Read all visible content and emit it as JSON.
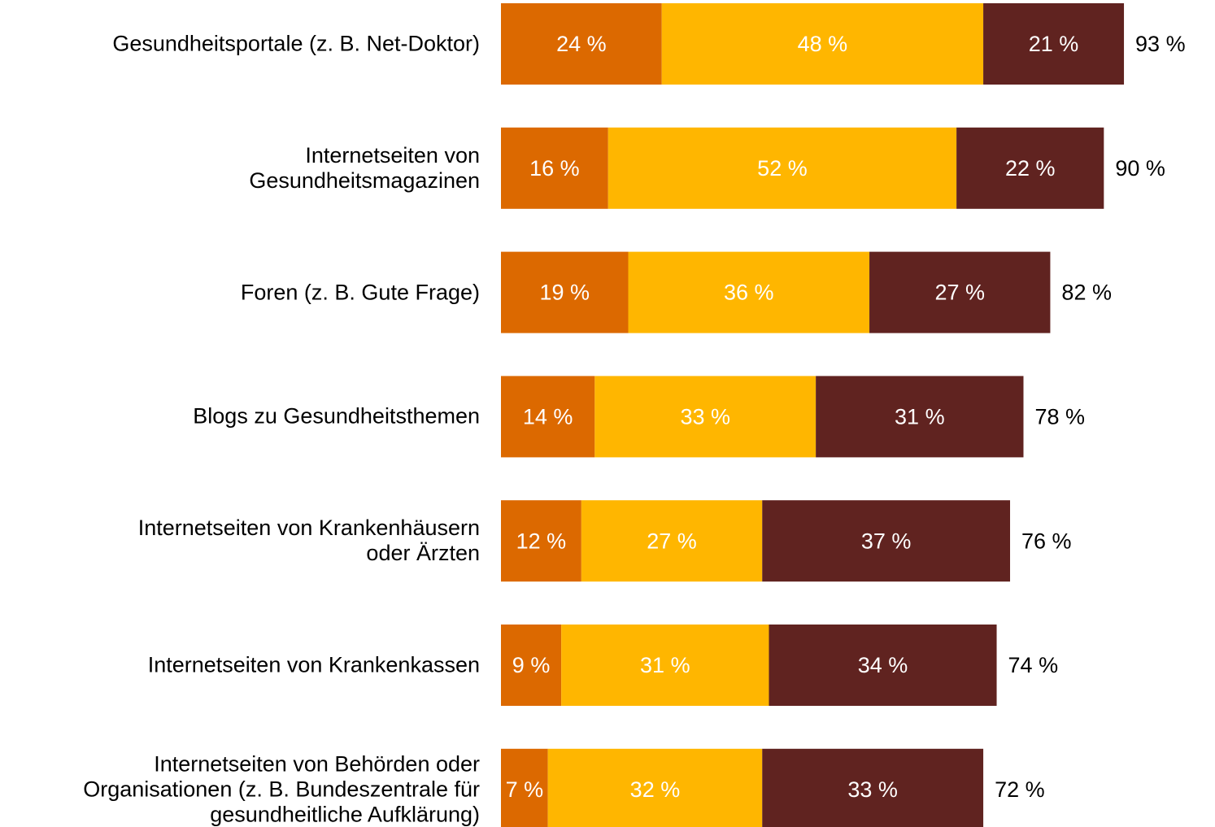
{
  "chart_data": {
    "type": "stacked-bar-horizontal",
    "categories": [
      "Gesundheitsportale (z. B. Net-Doktor)",
      "Internetseiten von\nGesundheitsmagazinen",
      "Foren (z. B. Gute Frage)",
      "Blogs zu Gesundheitsthemen",
      "Internetseiten von Krankenhäusern\noder Ärzten",
      "Internetseiten von Krankenkassen",
      "Internetseiten von Behörden oder\nOrganisationen (z. B. Bundeszentrale für\ngesundheitliche Aufklärung)"
    ],
    "series": [
      {
        "color": "#dc6900",
        "values": [
          24,
          16,
          19,
          14,
          12,
          9,
          7
        ],
        "value_labels": [
          "24 %",
          "16 %",
          "19 %",
          "14 %",
          "12 %",
          "9 %",
          "7 %"
        ]
      },
      {
        "color": "#ffb600",
        "values": [
          48,
          52,
          36,
          33,
          27,
          31,
          32
        ],
        "value_labels": [
          "48 %",
          "52 %",
          "36 %",
          "33 %",
          "27 %",
          "31 %",
          "32 %"
        ]
      },
      {
        "color": "#602320",
        "values": [
          21,
          22,
          27,
          31,
          37,
          34,
          33
        ],
        "value_labels": [
          "21 %",
          "22 %",
          "27 %",
          "31 %",
          "37 %",
          "34 %",
          "33 %"
        ]
      }
    ],
    "totals": {
      "values": [
        93,
        90,
        82,
        78,
        76,
        74,
        72
      ],
      "value_labels": [
        "93 %",
        "90 %",
        "82 %",
        "78 %",
        "76 %",
        "74 %",
        "72 %"
      ]
    }
  }
}
